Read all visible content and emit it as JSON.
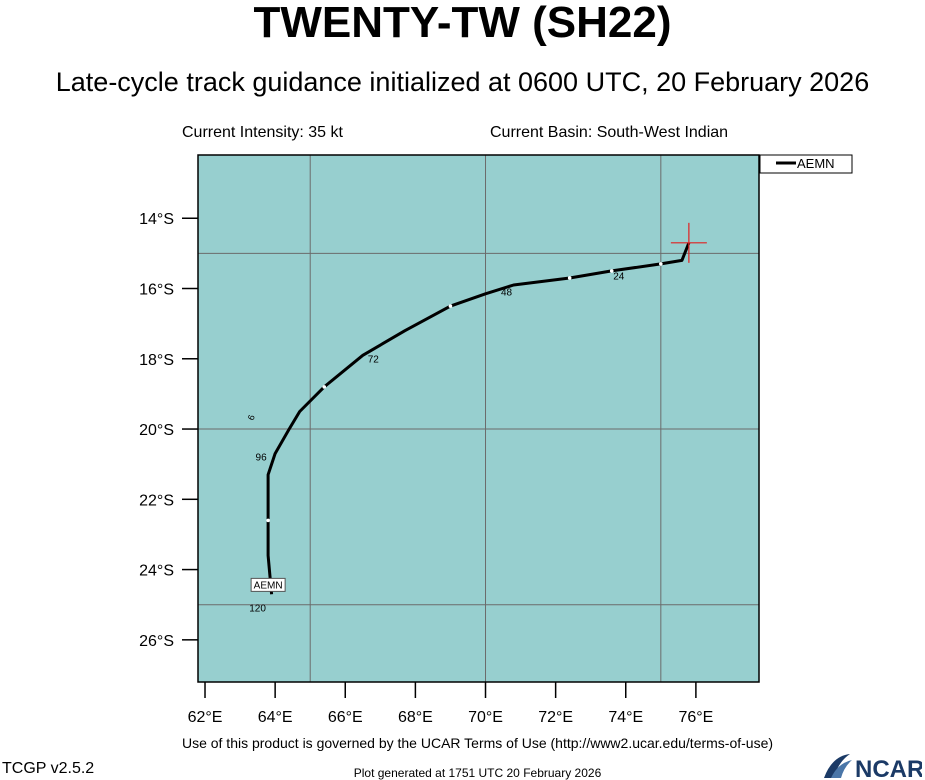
{
  "header": {
    "title": "TWENTY-TW (SH22)",
    "subtitle": "Late-cycle track guidance initialized at 0600 UTC, 20 February 2026",
    "current_intensity": "Current Intensity: 35 kt",
    "current_basin": "Current Basin: South-West Indian"
  },
  "footer": {
    "terms": "Use of this product is governed by the UCAR Terms of Use (http://www2.ucar.edu/terms-of-use)",
    "version": "TCGP v2.5.2",
    "generated": "Plot generated at 1751 UTC   20 February 2026",
    "logo_text": "NCAR"
  },
  "colors": {
    "ocean": "#97cfcf",
    "track": "#000000",
    "grid": "#6b6b6b",
    "current_position_marker": "#e02020"
  },
  "chart_data": {
    "type": "scatter",
    "title": "TWENTY-TW (SH22)",
    "xlabel": "",
    "ylabel": "",
    "xlim": [
      61.8,
      77.8
    ],
    "ylim": [
      -27.2,
      -12.2
    ],
    "x_ticks": [
      62,
      64,
      66,
      68,
      70,
      72,
      74,
      76
    ],
    "x_tick_labels": [
      "62°E",
      "64°E",
      "66°E",
      "68°E",
      "70°E",
      "72°E",
      "74°E",
      "76°E"
    ],
    "y_ticks": [
      -14,
      -16,
      -18,
      -20,
      -22,
      -24,
      -26
    ],
    "y_tick_labels": [
      "14°S",
      "16°S",
      "18°S",
      "20°S",
      "22°S",
      "24°S",
      "26°S"
    ],
    "grid": true,
    "gridlines_lon": [
      65,
      70,
      75
    ],
    "gridlines_lat": [
      -15,
      -20,
      -25
    ],
    "legend": {
      "position": "top-right",
      "entries": [
        "AEMN"
      ]
    },
    "current_position": {
      "lon": 75.8,
      "lat": -14.7
    },
    "series": [
      {
        "name": "AEMN",
        "points": [
          {
            "lon": 75.8,
            "lat": -14.7
          },
          {
            "lon": 75.6,
            "lat": -15.2
          },
          {
            "lon": 75.0,
            "lat": -15.3
          },
          {
            "lon": 73.6,
            "lat": -15.5
          },
          {
            "lon": 72.4,
            "lat": -15.7
          },
          {
            "lon": 70.8,
            "lat": -15.9
          },
          {
            "lon": 70.0,
            "lat": -16.15
          },
          {
            "lon": 69.0,
            "lat": -16.5
          },
          {
            "lon": 67.7,
            "lat": -17.2
          },
          {
            "lon": 66.5,
            "lat": -17.9
          },
          {
            "lon": 65.4,
            "lat": -18.8
          },
          {
            "lon": 64.7,
            "lat": -19.5
          },
          {
            "lon": 64.4,
            "lat": -20.0
          },
          {
            "lon": 64.0,
            "lat": -20.7
          },
          {
            "lon": 63.8,
            "lat": -21.3
          },
          {
            "lon": 63.8,
            "lat": -21.6
          },
          {
            "lon": 63.8,
            "lat": -22.6
          },
          {
            "lon": 63.8,
            "lat": -23.6
          },
          {
            "lon": 63.9,
            "lat": -24.7
          }
        ],
        "tick_marks": [
          {
            "lon": 75.0,
            "lat": -15.3
          },
          {
            "lon": 73.6,
            "lat": -15.5
          },
          {
            "lon": 72.4,
            "lat": -15.7
          },
          {
            "lon": 69.0,
            "lat": -16.5
          },
          {
            "lon": 65.4,
            "lat": -18.8
          },
          {
            "lon": 63.8,
            "lat": -22.6
          }
        ],
        "hour_labels": [
          {
            "text": "24",
            "lon": 73.8,
            "lat": -15.75
          },
          {
            "text": "48",
            "lon": 70.6,
            "lat": -16.2
          },
          {
            "text": "72",
            "lon": 66.8,
            "lat": -18.1
          },
          {
            "text": "96",
            "lon": 63.6,
            "lat": -20.9
          },
          {
            "text": "120",
            "lon": 63.5,
            "lat": -25.2
          }
        ],
        "end_label": {
          "text": "AEMN",
          "lon": 63.8,
          "lat": -24.45
        }
      }
    ],
    "annotations": [
      {
        "text": "6",
        "lon": 63.4,
        "lat": -19.7,
        "rotated": true
      }
    ]
  }
}
